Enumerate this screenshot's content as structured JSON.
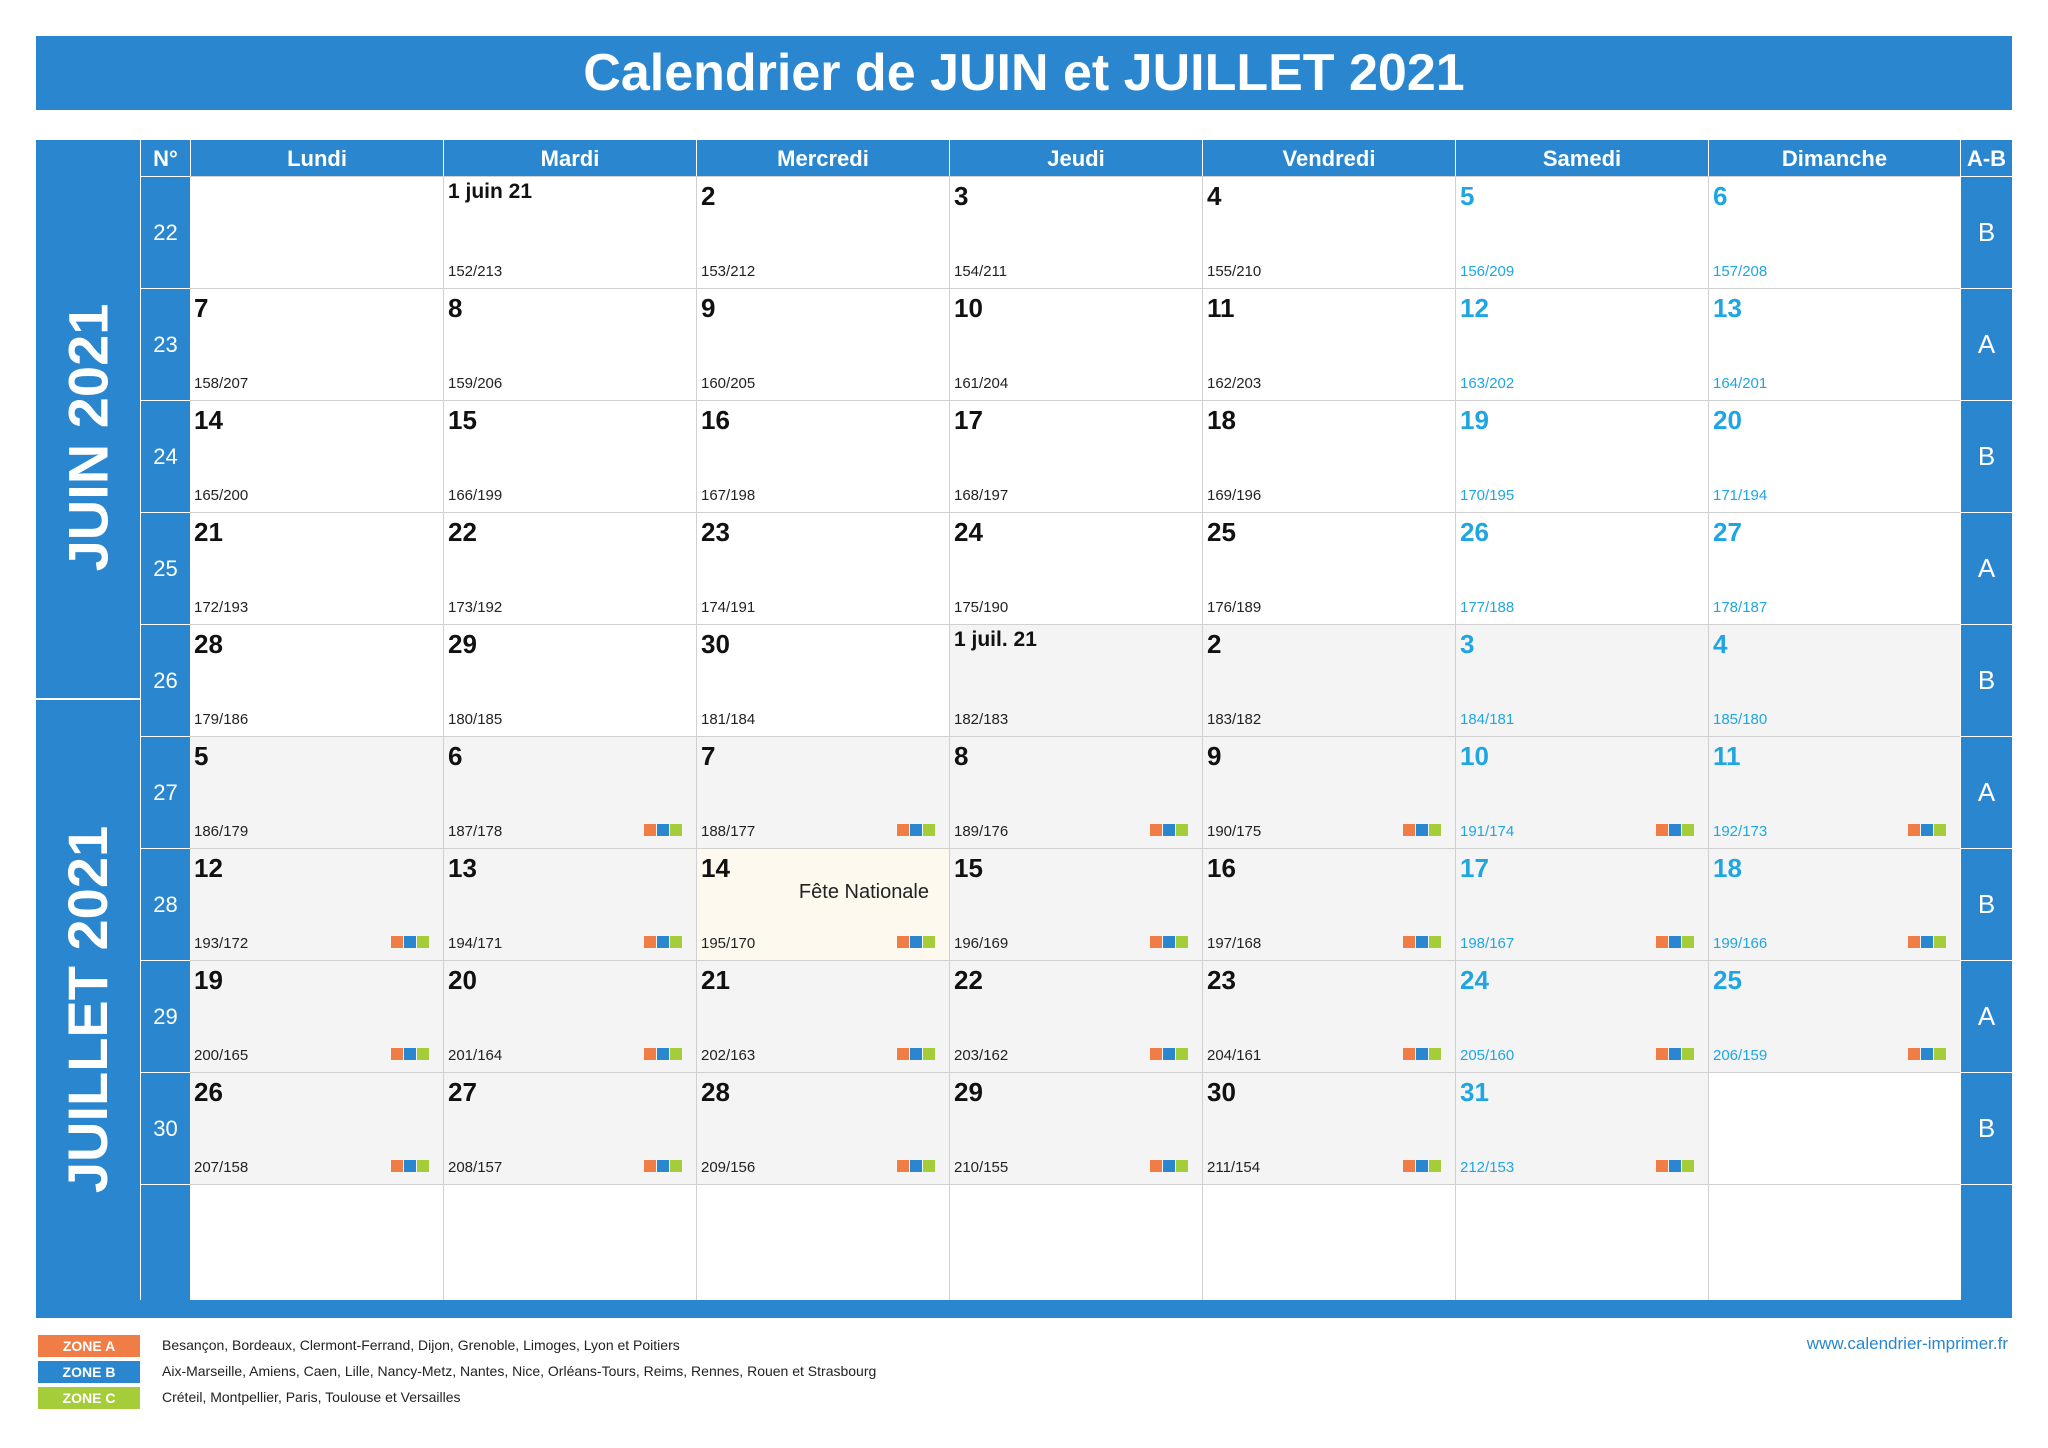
{
  "title": "Calendrier de JUIN et JUILLET 2021",
  "header": {
    "week_col": "N°",
    "days": [
      "Lundi",
      "Mardi",
      "Mercredi",
      "Jeudi",
      "Vendredi",
      "Samedi",
      "Dimanche"
    ],
    "ab_col": "A-B"
  },
  "months": [
    "JUIN 2021",
    "JUILLET 2021"
  ],
  "weeks": [
    {
      "num": "22",
      "ab": "B",
      "days": [
        null,
        {
          "label": "1 juin 21",
          "doy": "152/213",
          "month": "jun"
        },
        {
          "label": "2",
          "doy": "153/212",
          "month": "jun"
        },
        {
          "label": "3",
          "doy": "154/211",
          "month": "jun"
        },
        {
          "label": "4",
          "doy": "155/210",
          "month": "jun"
        },
        {
          "label": "5",
          "doy": "156/209",
          "month": "jun"
        },
        {
          "label": "6",
          "doy": "157/208",
          "month": "jun"
        }
      ]
    },
    {
      "num": "23",
      "ab": "A",
      "days": [
        {
          "label": "7",
          "doy": "158/207",
          "month": "jun"
        },
        {
          "label": "8",
          "doy": "159/206",
          "month": "jun"
        },
        {
          "label": "9",
          "doy": "160/205",
          "month": "jun"
        },
        {
          "label": "10",
          "doy": "161/204",
          "month": "jun"
        },
        {
          "label": "11",
          "doy": "162/203",
          "month": "jun"
        },
        {
          "label": "12",
          "doy": "163/202",
          "month": "jun"
        },
        {
          "label": "13",
          "doy": "164/201",
          "month": "jun"
        }
      ]
    },
    {
      "num": "24",
      "ab": "B",
      "days": [
        {
          "label": "14",
          "doy": "165/200",
          "month": "jun"
        },
        {
          "label": "15",
          "doy": "166/199",
          "month": "jun"
        },
        {
          "label": "16",
          "doy": "167/198",
          "month": "jun"
        },
        {
          "label": "17",
          "doy": "168/197",
          "month": "jun"
        },
        {
          "label": "18",
          "doy": "169/196",
          "month": "jun"
        },
        {
          "label": "19",
          "doy": "170/195",
          "month": "jun"
        },
        {
          "label": "20",
          "doy": "171/194",
          "month": "jun"
        }
      ]
    },
    {
      "num": "25",
      "ab": "A",
      "days": [
        {
          "label": "21",
          "doy": "172/193",
          "month": "jun"
        },
        {
          "label": "22",
          "doy": "173/192",
          "month": "jun"
        },
        {
          "label": "23",
          "doy": "174/191",
          "month": "jun"
        },
        {
          "label": "24",
          "doy": "175/190",
          "month": "jun"
        },
        {
          "label": "25",
          "doy": "176/189",
          "month": "jun"
        },
        {
          "label": "26",
          "doy": "177/188",
          "month": "jun"
        },
        {
          "label": "27",
          "doy": "178/187",
          "month": "jun"
        }
      ]
    },
    {
      "num": "26",
      "ab": "B",
      "days": [
        {
          "label": "28",
          "doy": "179/186",
          "month": "jun"
        },
        {
          "label": "29",
          "doy": "180/185",
          "month": "jun"
        },
        {
          "label": "30",
          "doy": "181/184",
          "month": "jun"
        },
        {
          "label": "1 juil. 21",
          "doy": "182/183",
          "month": "jul"
        },
        {
          "label": "2",
          "doy": "183/182",
          "month": "jul"
        },
        {
          "label": "3",
          "doy": "184/181",
          "month": "jul"
        },
        {
          "label": "4",
          "doy": "185/180",
          "month": "jul"
        }
      ]
    },
    {
      "num": "27",
      "ab": "A",
      "days": [
        {
          "label": "5",
          "doy": "186/179",
          "month": "jul"
        },
        {
          "label": "6",
          "doy": "187/178",
          "month": "jul",
          "zones": true
        },
        {
          "label": "7",
          "doy": "188/177",
          "month": "jul",
          "zones": true
        },
        {
          "label": "8",
          "doy": "189/176",
          "month": "jul",
          "zones": true
        },
        {
          "label": "9",
          "doy": "190/175",
          "month": "jul",
          "zones": true
        },
        {
          "label": "10",
          "doy": "191/174",
          "month": "jul",
          "zones": true
        },
        {
          "label": "11",
          "doy": "192/173",
          "month": "jul",
          "zones": true
        }
      ]
    },
    {
      "num": "28",
      "ab": "B",
      "days": [
        {
          "label": "12",
          "doy": "193/172",
          "month": "jul",
          "zones": true
        },
        {
          "label": "13",
          "doy": "194/171",
          "month": "jul",
          "zones": true
        },
        {
          "label": "14",
          "doy": "195/170",
          "month": "jul",
          "zones": true,
          "event": "Fête Nationale",
          "holiday": true
        },
        {
          "label": "15",
          "doy": "196/169",
          "month": "jul",
          "zones": true
        },
        {
          "label": "16",
          "doy": "197/168",
          "month": "jul",
          "zones": true
        },
        {
          "label": "17",
          "doy": "198/167",
          "month": "jul",
          "zones": true
        },
        {
          "label": "18",
          "doy": "199/166",
          "month": "jul",
          "zones": true
        }
      ]
    },
    {
      "num": "29",
      "ab": "A",
      "days": [
        {
          "label": "19",
          "doy": "200/165",
          "month": "jul",
          "zones": true
        },
        {
          "label": "20",
          "doy": "201/164",
          "month": "jul",
          "zones": true
        },
        {
          "label": "21",
          "doy": "202/163",
          "month": "jul",
          "zones": true
        },
        {
          "label": "22",
          "doy": "203/162",
          "month": "jul",
          "zones": true
        },
        {
          "label": "23",
          "doy": "204/161",
          "month": "jul",
          "zones": true
        },
        {
          "label": "24",
          "doy": "205/160",
          "month": "jul",
          "zones": true
        },
        {
          "label": "25",
          "doy": "206/159",
          "month": "jul",
          "zones": true
        }
      ]
    },
    {
      "num": "30",
      "ab": "B",
      "days": [
        {
          "label": "26",
          "doy": "207/158",
          "month": "jul",
          "zones": true
        },
        {
          "label": "27",
          "doy": "208/157",
          "month": "jul",
          "zones": true
        },
        {
          "label": "28",
          "doy": "209/156",
          "month": "jul",
          "zones": true
        },
        {
          "label": "29",
          "doy": "210/155",
          "month": "jul",
          "zones": true
        },
        {
          "label": "30",
          "doy": "211/154",
          "month": "jul",
          "zones": true
        },
        {
          "label": "31",
          "doy": "212/153",
          "month": "jul",
          "zones": true
        },
        null
      ]
    }
  ],
  "legend": [
    {
      "badge": "ZONE A",
      "color": "#ef7d45",
      "text": "Besançon, Bordeaux, Clermont-Ferrand, Dijon, Grenoble, Limoges, Lyon et Poitiers"
    },
    {
      "badge": "ZONE B",
      "color": "#2a87cf",
      "text": "Aix-Marseille, Amiens, Caen, Lille, Nancy-Metz, Nantes, Nice, Orléans-Tours, Reims, Rennes, Rouen et Strasbourg"
    },
    {
      "badge": "ZONE C",
      "color": "#a5cd39",
      "text": "Créteil, Montpellier, Paris, Toulouse et Versailles"
    }
  ],
  "website": "www.calendrier-imprimer.fr",
  "colors": {
    "primary": "#2a87cf",
    "weekend": "#1fa6e2",
    "zone_a": "#ef7d45",
    "zone_b": "#2a87cf",
    "zone_c": "#a5cd39",
    "july_bg": "#f4f4f4",
    "holiday_bg": "#fdf9ee"
  }
}
